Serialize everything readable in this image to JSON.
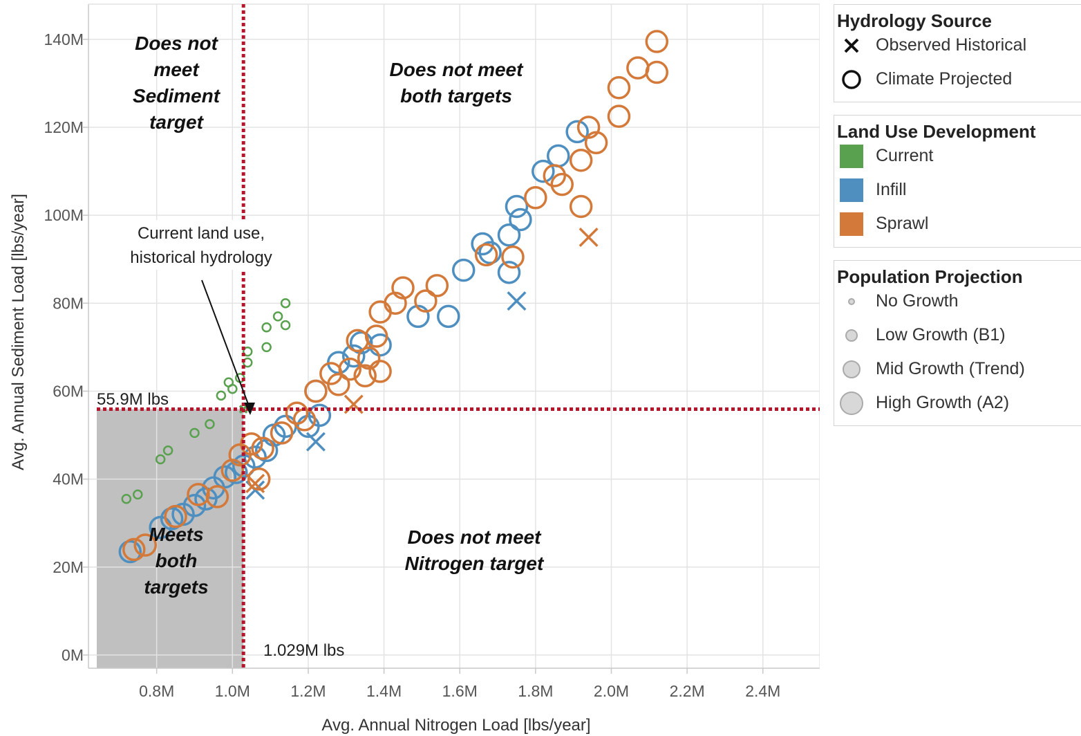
{
  "chart_data": {
    "type": "scatter",
    "xlabel": "Avg. Annual Nitrogen Load [lbs/year]",
    "ylabel": "Avg. Annual Sediment Load  [lbs/year]",
    "xlim": [
      0.62,
      2.55
    ],
    "ylim": [
      -3,
      148
    ],
    "x_ticks": [
      {
        "value": 0.8,
        "label": "0.8M"
      },
      {
        "value": 1.0,
        "label": "1.0M"
      },
      {
        "value": 1.2,
        "label": "1.2M"
      },
      {
        "value": 1.4,
        "label": "1.4M"
      },
      {
        "value": 1.6,
        "label": "1.6M"
      },
      {
        "value": 1.8,
        "label": "1.8M"
      },
      {
        "value": 2.0,
        "label": "2.0M"
      },
      {
        "value": 2.2,
        "label": "2.2M"
      },
      {
        "value": 2.4,
        "label": "2.4M"
      }
    ],
    "y_ticks": [
      {
        "value": 0,
        "label": "0M"
      },
      {
        "value": 20,
        "label": "20M"
      },
      {
        "value": 40,
        "label": "40M"
      },
      {
        "value": 60,
        "label": "60M"
      },
      {
        "value": 80,
        "label": "80M"
      },
      {
        "value": 100,
        "label": "100M"
      },
      {
        "value": 120,
        "label": "120M"
      },
      {
        "value": 140,
        "label": "140M"
      }
    ],
    "grid": true,
    "units": "millions of lbs/year",
    "targets": {
      "nitrogen": {
        "value": 1.029,
        "label": "1.029M lbs"
      },
      "sediment": {
        "value": 55.9,
        "label": "55.9M lbs"
      }
    },
    "zones": {
      "top_left": [
        "Does not",
        "meet",
        "Sediment",
        "target"
      ],
      "top_right": [
        "Does not meet",
        "both targets"
      ],
      "bottom_left": [
        "Meets",
        "both",
        "targets"
      ],
      "bottom_right": [
        "Does not meet",
        "Nitrogen target"
      ]
    },
    "annotation": {
      "lines": [
        "Current land use,",
        "historical hydrology"
      ]
    },
    "colors": {
      "Current": "#59a14f",
      "Infill": "#4e8fc0",
      "Sprawl": "#d37a3a",
      "target_line": "#b5162b",
      "meets_zone": "#c0c0c0"
    },
    "series": [
      {
        "name": "Current",
        "points": [
          {
            "x": 0.72,
            "y": 35.5,
            "growth": "No Growth",
            "hydro": "Climate Projected"
          },
          {
            "x": 0.75,
            "y": 36.5,
            "growth": "No Growth",
            "hydro": "Climate Projected"
          },
          {
            "x": 0.81,
            "y": 44.5,
            "growth": "No Growth",
            "hydro": "Climate Projected"
          },
          {
            "x": 0.83,
            "y": 46.5,
            "growth": "No Growth",
            "hydro": "Climate Projected"
          },
          {
            "x": 0.9,
            "y": 50.5,
            "growth": "No Growth",
            "hydro": "Climate Projected"
          },
          {
            "x": 0.94,
            "y": 52.5,
            "growth": "No Growth",
            "hydro": "Climate Projected"
          },
          {
            "x": 0.97,
            "y": 59.0,
            "growth": "No Growth",
            "hydro": "Climate Projected"
          },
          {
            "x": 0.99,
            "y": 62.0,
            "growth": "No Growth",
            "hydro": "Climate Projected"
          },
          {
            "x": 1.0,
            "y": 60.5,
            "growth": "No Growth",
            "hydro": "Climate Projected"
          },
          {
            "x": 1.02,
            "y": 63.0,
            "growth": "No Growth",
            "hydro": "Climate Projected"
          },
          {
            "x": 1.04,
            "y": 66.5,
            "growth": "No Growth",
            "hydro": "Climate Projected"
          },
          {
            "x": 1.04,
            "y": 69.0,
            "growth": "No Growth",
            "hydro": "Climate Projected"
          },
          {
            "x": 1.09,
            "y": 70.0,
            "growth": "No Growth",
            "hydro": "Climate Projected"
          },
          {
            "x": 1.09,
            "y": 74.5,
            "growth": "No Growth",
            "hydro": "Climate Projected"
          },
          {
            "x": 1.12,
            "y": 77.0,
            "growth": "No Growth",
            "hydro": "Climate Projected"
          },
          {
            "x": 1.14,
            "y": 75.0,
            "growth": "No Growth",
            "hydro": "Climate Projected"
          },
          {
            "x": 1.14,
            "y": 80.0,
            "growth": "No Growth",
            "hydro": "Climate Projected"
          },
          {
            "x": 1.029,
            "y": 55.9,
            "growth": "No Growth",
            "hydro": "Observed Historical"
          }
        ]
      },
      {
        "name": "Infill",
        "points": [
          {
            "x": 0.73,
            "y": 23.5,
            "growth": "High Growth (A2)",
            "hydro": "Climate Projected"
          },
          {
            "x": 0.81,
            "y": 29.0,
            "growth": "High Growth (A2)",
            "hydro": "Climate Projected"
          },
          {
            "x": 0.84,
            "y": 31.0,
            "growth": "High Growth (A2)",
            "hydro": "Climate Projected"
          },
          {
            "x": 0.87,
            "y": 32.0,
            "growth": "High Growth (A2)",
            "hydro": "Climate Projected"
          },
          {
            "x": 0.9,
            "y": 34.0,
            "growth": "High Growth (A2)",
            "hydro": "Climate Projected"
          },
          {
            "x": 0.93,
            "y": 35.5,
            "growth": "High Growth (A2)",
            "hydro": "Climate Projected"
          },
          {
            "x": 0.95,
            "y": 38.0,
            "growth": "High Growth (A2)",
            "hydro": "Climate Projected"
          },
          {
            "x": 0.98,
            "y": 40.5,
            "growth": "High Growth (A2)",
            "hydro": "Climate Projected"
          },
          {
            "x": 1.01,
            "y": 41.5,
            "growth": "High Growth (A2)",
            "hydro": "Climate Projected"
          },
          {
            "x": 1.03,
            "y": 43.0,
            "growth": "High Growth (A2)",
            "hydro": "Climate Projected"
          },
          {
            "x": 1.06,
            "y": 45.0,
            "growth": "High Growth (A2)",
            "hydro": "Climate Projected"
          },
          {
            "x": 1.09,
            "y": 46.5,
            "growth": "High Growth (A2)",
            "hydro": "Climate Projected"
          },
          {
            "x": 1.11,
            "y": 50.0,
            "growth": "High Growth (A2)",
            "hydro": "Climate Projected"
          },
          {
            "x": 1.14,
            "y": 52.0,
            "growth": "High Growth (A2)",
            "hydro": "Climate Projected"
          },
          {
            "x": 1.2,
            "y": 52.0,
            "growth": "High Growth (A2)",
            "hydro": "Climate Projected"
          },
          {
            "x": 1.23,
            "y": 54.5,
            "growth": "High Growth (A2)",
            "hydro": "Climate Projected"
          },
          {
            "x": 1.22,
            "y": 60.0,
            "growth": "High Growth (A2)",
            "hydro": "Climate Projected"
          },
          {
            "x": 1.28,
            "y": 66.5,
            "growth": "High Growth (A2)",
            "hydro": "Climate Projected"
          },
          {
            "x": 1.32,
            "y": 68.0,
            "growth": "High Growth (A2)",
            "hydro": "Climate Projected"
          },
          {
            "x": 1.34,
            "y": 71.0,
            "growth": "High Growth (A2)",
            "hydro": "Climate Projected"
          },
          {
            "x": 1.39,
            "y": 70.5,
            "growth": "High Growth (A2)",
            "hydro": "Climate Projected"
          },
          {
            "x": 1.49,
            "y": 77.0,
            "growth": "High Growth (A2)",
            "hydro": "Climate Projected"
          },
          {
            "x": 1.57,
            "y": 77.0,
            "growth": "High Growth (A2)",
            "hydro": "Climate Projected"
          },
          {
            "x": 1.61,
            "y": 87.5,
            "growth": "High Growth (A2)",
            "hydro": "Climate Projected"
          },
          {
            "x": 1.66,
            "y": 93.5,
            "growth": "High Growth (A2)",
            "hydro": "Climate Projected"
          },
          {
            "x": 1.68,
            "y": 91.5,
            "growth": "High Growth (A2)",
            "hydro": "Climate Projected"
          },
          {
            "x": 1.73,
            "y": 95.5,
            "growth": "High Growth (A2)",
            "hydro": "Climate Projected"
          },
          {
            "x": 1.73,
            "y": 87.0,
            "growth": "High Growth (A2)",
            "hydro": "Climate Projected"
          },
          {
            "x": 1.76,
            "y": 99.0,
            "growth": "High Growth (A2)",
            "hydro": "Climate Projected"
          },
          {
            "x": 1.75,
            "y": 102.0,
            "growth": "High Growth (A2)",
            "hydro": "Climate Projected"
          },
          {
            "x": 1.82,
            "y": 110.0,
            "growth": "High Growth (A2)",
            "hydro": "Climate Projected"
          },
          {
            "x": 1.86,
            "y": 113.5,
            "growth": "High Growth (A2)",
            "hydro": "Climate Projected"
          },
          {
            "x": 1.91,
            "y": 119.0,
            "growth": "High Growth (A2)",
            "hydro": "Climate Projected"
          },
          {
            "x": 1.06,
            "y": 37.5,
            "growth": "High Growth (A2)",
            "hydro": "Observed Historical"
          },
          {
            "x": 1.22,
            "y": 48.5,
            "growth": "High Growth (A2)",
            "hydro": "Observed Historical"
          },
          {
            "x": 1.75,
            "y": 80.5,
            "growth": "High Growth (A2)",
            "hydro": "Observed Historical"
          }
        ]
      },
      {
        "name": "Sprawl",
        "points": [
          {
            "x": 0.74,
            "y": 24.0,
            "growth": "High Growth (A2)",
            "hydro": "Climate Projected"
          },
          {
            "x": 0.77,
            "y": 25.0,
            "growth": "High Growth (A2)",
            "hydro": "Climate Projected"
          },
          {
            "x": 0.85,
            "y": 31.5,
            "growth": "High Growth (A2)",
            "hydro": "Climate Projected"
          },
          {
            "x": 0.91,
            "y": 36.5,
            "growth": "High Growth (A2)",
            "hydro": "Climate Projected"
          },
          {
            "x": 0.96,
            "y": 36.0,
            "growth": "High Growth (A2)",
            "hydro": "Climate Projected"
          },
          {
            "x": 1.0,
            "y": 42.0,
            "growth": "High Growth (A2)",
            "hydro": "Climate Projected"
          },
          {
            "x": 1.02,
            "y": 45.5,
            "growth": "High Growth (A2)",
            "hydro": "Climate Projected"
          },
          {
            "x": 1.05,
            "y": 48.0,
            "growth": "High Growth (A2)",
            "hydro": "Climate Projected"
          },
          {
            "x": 1.07,
            "y": 40.0,
            "growth": "High Growth (A2)",
            "hydro": "Climate Projected"
          },
          {
            "x": 1.08,
            "y": 47.0,
            "growth": "High Growth (A2)",
            "hydro": "Climate Projected"
          },
          {
            "x": 1.13,
            "y": 50.5,
            "growth": "High Growth (A2)",
            "hydro": "Climate Projected"
          },
          {
            "x": 1.17,
            "y": 55.0,
            "growth": "High Growth (A2)",
            "hydro": "Climate Projected"
          },
          {
            "x": 1.19,
            "y": 53.5,
            "growth": "High Growth (A2)",
            "hydro": "Climate Projected"
          },
          {
            "x": 1.22,
            "y": 60.0,
            "growth": "High Growth (A2)",
            "hydro": "Climate Projected"
          },
          {
            "x": 1.26,
            "y": 64.0,
            "growth": "High Growth (A2)",
            "hydro": "Climate Projected"
          },
          {
            "x": 1.28,
            "y": 61.5,
            "growth": "High Growth (A2)",
            "hydro": "Climate Projected"
          },
          {
            "x": 1.31,
            "y": 65.0,
            "growth": "High Growth (A2)",
            "hydro": "Climate Projected"
          },
          {
            "x": 1.33,
            "y": 71.5,
            "growth": "High Growth (A2)",
            "hydro": "Climate Projected"
          },
          {
            "x": 1.35,
            "y": 63.5,
            "growth": "High Growth (A2)",
            "hydro": "Climate Projected"
          },
          {
            "x": 1.36,
            "y": 67.5,
            "growth": "High Growth (A2)",
            "hydro": "Climate Projected"
          },
          {
            "x": 1.38,
            "y": 72.5,
            "growth": "High Growth (A2)",
            "hydro": "Climate Projected"
          },
          {
            "x": 1.39,
            "y": 64.5,
            "growth": "High Growth (A2)",
            "hydro": "Climate Projected"
          },
          {
            "x": 1.39,
            "y": 78.0,
            "growth": "High Growth (A2)",
            "hydro": "Climate Projected"
          },
          {
            "x": 1.43,
            "y": 80.0,
            "growth": "High Growth (A2)",
            "hydro": "Climate Projected"
          },
          {
            "x": 1.45,
            "y": 83.5,
            "growth": "High Growth (A2)",
            "hydro": "Climate Projected"
          },
          {
            "x": 1.51,
            "y": 80.5,
            "growth": "High Growth (A2)",
            "hydro": "Climate Projected"
          },
          {
            "x": 1.54,
            "y": 84.0,
            "growth": "High Growth (A2)",
            "hydro": "Climate Projected"
          },
          {
            "x": 1.67,
            "y": 91.0,
            "growth": "High Growth (A2)",
            "hydro": "Climate Projected"
          },
          {
            "x": 1.74,
            "y": 90.5,
            "growth": "High Growth (A2)",
            "hydro": "Climate Projected"
          },
          {
            "x": 1.8,
            "y": 104.0,
            "growth": "High Growth (A2)",
            "hydro": "Climate Projected"
          },
          {
            "x": 1.85,
            "y": 109.0,
            "growth": "High Growth (A2)",
            "hydro": "Climate Projected"
          },
          {
            "x": 1.87,
            "y": 107.0,
            "growth": "High Growth (A2)",
            "hydro": "Climate Projected"
          },
          {
            "x": 1.92,
            "y": 112.5,
            "growth": "High Growth (A2)",
            "hydro": "Climate Projected"
          },
          {
            "x": 1.92,
            "y": 102.0,
            "growth": "High Growth (A2)",
            "hydro": "Climate Projected"
          },
          {
            "x": 1.94,
            "y": 120.0,
            "growth": "High Growth (A2)",
            "hydro": "Climate Projected"
          },
          {
            "x": 1.96,
            "y": 116.5,
            "growth": "High Growth (A2)",
            "hydro": "Climate Projected"
          },
          {
            "x": 2.02,
            "y": 122.5,
            "growth": "High Growth (A2)",
            "hydro": "Climate Projected"
          },
          {
            "x": 2.02,
            "y": 129.0,
            "growth": "High Growth (A2)",
            "hydro": "Climate Projected"
          },
          {
            "x": 2.07,
            "y": 133.5,
            "growth": "High Growth (A2)",
            "hydro": "Climate Projected"
          },
          {
            "x": 2.12,
            "y": 139.5,
            "growth": "High Growth (A2)",
            "hydro": "Climate Projected"
          },
          {
            "x": 2.12,
            "y": 132.5,
            "growth": "High Growth (A2)",
            "hydro": "Climate Projected"
          },
          {
            "x": 1.06,
            "y": 39.0,
            "growth": "High Growth (A2)",
            "hydro": "Observed Historical"
          },
          {
            "x": 1.32,
            "y": 57.0,
            "growth": "High Growth (A2)",
            "hydro": "Observed Historical"
          },
          {
            "x": 1.94,
            "y": 95.0,
            "growth": "High Growth (A2)",
            "hydro": "Observed Historical"
          }
        ]
      }
    ]
  },
  "legend": {
    "hydrology": {
      "title": "Hydrology Source",
      "items": [
        {
          "label": "Observed Historical",
          "icon": "x-mark-icon"
        },
        {
          "label": "Climate Projected",
          "icon": "circle-outline-icon"
        }
      ]
    },
    "land_use": {
      "title": "Land Use Development",
      "items": [
        {
          "label": "Current",
          "color": "#59a14f"
        },
        {
          "label": "Infill",
          "color": "#4e8fc0"
        },
        {
          "label": "Sprawl",
          "color": "#d37a3a"
        }
      ]
    },
    "population": {
      "title": "Population Projection",
      "items": [
        {
          "label": "No Growth",
          "size": 1
        },
        {
          "label": "Low Growth (B1)",
          "size": 2
        },
        {
          "label": "Mid Growth (Trend)",
          "size": 3
        },
        {
          "label": "High Growth (A2)",
          "size": 4
        }
      ]
    }
  }
}
